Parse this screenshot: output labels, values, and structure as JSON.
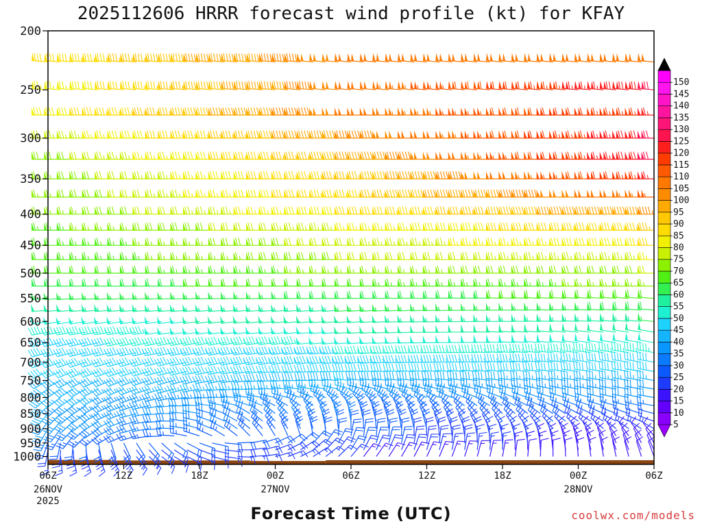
{
  "chart_data": {
    "type": "wind_barb_profile",
    "title": "2025112606 HRRR forecast wind profile (kt) for KFAY",
    "xlabel": "Forecast Time (UTC)",
    "ylabel": "",
    "y_axis": {
      "scale": "log-pressure",
      "range": [
        1030,
        200
      ],
      "ticks": [
        200,
        250,
        300,
        350,
        400,
        450,
        500,
        550,
        600,
        650,
        700,
        750,
        800,
        850,
        900,
        950,
        1000
      ],
      "tick_labels": [
        "200",
        "250",
        "300",
        "350",
        "400",
        "450",
        "500",
        "550",
        "600",
        "650",
        "700",
        "750",
        "800",
        "850",
        "900",
        "950",
        "1000"
      ]
    },
    "x_axis": {
      "range_hours": [
        0,
        48
      ],
      "ticks": [
        {
          "hour": 0,
          "label": "06Z",
          "sub": [
            "26NOV",
            "2025"
          ]
        },
        {
          "hour": 6,
          "label": "12Z",
          "sub": []
        },
        {
          "hour": 12,
          "label": "18Z",
          "sub": []
        },
        {
          "hour": 18,
          "label": "00Z",
          "sub": [
            "27NOV"
          ]
        },
        {
          "hour": 24,
          "label": "06Z",
          "sub": []
        },
        {
          "hour": 30,
          "label": "12Z",
          "sub": []
        },
        {
          "hour": 36,
          "label": "18Z",
          "sub": []
        },
        {
          "hour": 42,
          "label": "00Z",
          "sub": [
            "28NOV"
          ]
        },
        {
          "hour": 48,
          "label": "06Z",
          "sub": []
        }
      ]
    },
    "colorbar": {
      "units": "kt",
      "levels": [
        5,
        10,
        15,
        20,
        25,
        30,
        35,
        40,
        45,
        50,
        55,
        60,
        65,
        70,
        75,
        80,
        85,
        90,
        95,
        100,
        105,
        110,
        115,
        120,
        125,
        130,
        135,
        140,
        145,
        150
      ],
      "colors": [
        "#8a00ff",
        "#6400ff",
        "#3c14ff",
        "#1e3cff",
        "#0a5aff",
        "#0a7aff",
        "#0a96ff",
        "#14b4ff",
        "#1ed2ff",
        "#1ef0d2",
        "#1ef0a0",
        "#32f050",
        "#50f014",
        "#8cf000",
        "#c8f000",
        "#f0f000",
        "#ffdc00",
        "#ffc800",
        "#ffaa00",
        "#ff8c00",
        "#ff7800",
        "#ff5a00",
        "#ff3c00",
        "#ff1e1e",
        "#ff1450",
        "#ff1478",
        "#ff14a0",
        "#ff14c8",
        "#ff14f0",
        "#ff00ff"
      ],
      "arrow_colors": {
        "low": "#9a00ff",
        "high": "#000000"
      }
    },
    "terrain": {
      "color": "#8b4513",
      "surface_pressure_segments": [
        {
          "from_hour": 0,
          "to_hour": 5,
          "top": 1013
        },
        {
          "from_hour": 5,
          "to_hour": 16,
          "top": 1015
        },
        {
          "from_hour": 16,
          "to_hour": 22,
          "top": 1017
        },
        {
          "from_hour": 22,
          "to_hour": 48,
          "top": 1014
        }
      ]
    },
    "wind_profile": {
      "time_step_hours": 1,
      "levels_hpa": [
        1000,
        975,
        950,
        925,
        900,
        875,
        850,
        825,
        800,
        775,
        750,
        725,
        700,
        675,
        650,
        625,
        600,
        575,
        550,
        525,
        500,
        475,
        450,
        425,
        400,
        375,
        350,
        325,
        300,
        275,
        250,
        225
      ],
      "speed_kt_at_hour_0": [
        15,
        18,
        20,
        25,
        30,
        32,
        35,
        35,
        36,
        38,
        38,
        40,
        40,
        42,
        44,
        46,
        48,
        52,
        55,
        58,
        60,
        62,
        62,
        64,
        65,
        66,
        66,
        68,
        72,
        78,
        75,
        80
      ],
      "speed_kt_at_hour_24": [
        15,
        20,
        22,
        22,
        22,
        25,
        25,
        28,
        30,
        35,
        40,
        42,
        44,
        45,
        48,
        50,
        52,
        55,
        58,
        62,
        66,
        70,
        72,
        75,
        80,
        84,
        86,
        90,
        95,
        100,
        100,
        100
      ],
      "speed_kt_at_hour_48": [
        10,
        10,
        10,
        12,
        15,
        18,
        22,
        25,
        30,
        32,
        35,
        40,
        42,
        45,
        48,
        50,
        55,
        58,
        62,
        66,
        70,
        75,
        80,
        85,
        95,
        105,
        115,
        120,
        120,
        115,
        120,
        100
      ],
      "direction_deg_at_hour_0": [
        180,
        190,
        200,
        205,
        210,
        215,
        220,
        225,
        230,
        235,
        240,
        245,
        250,
        255,
        255,
        260,
        260,
        265,
        265,
        270,
        270,
        270,
        270,
        270,
        270,
        270,
        270,
        270,
        270,
        270,
        275,
        275
      ],
      "direction_deg_at_hour_24": [
        40,
        30,
        20,
        10,
        0,
        350,
        340,
        320,
        300,
        285,
        275,
        270,
        265,
        265,
        265,
        265,
        265,
        265,
        270,
        270,
        270,
        270,
        270,
        270,
        270,
        270,
        270,
        270,
        270,
        270,
        275,
        275
      ],
      "direction_deg_at_hour_48": [
        340,
        335,
        330,
        320,
        300,
        290,
        285,
        280,
        280,
        280,
        280,
        280,
        280,
        280,
        280,
        280,
        275,
        275,
        275,
        270,
        270,
        270,
        270,
        270,
        270,
        270,
        270,
        270,
        270,
        270,
        275,
        275
      ]
    }
  },
  "footer": {
    "credit": "coolwx.com/models"
  }
}
